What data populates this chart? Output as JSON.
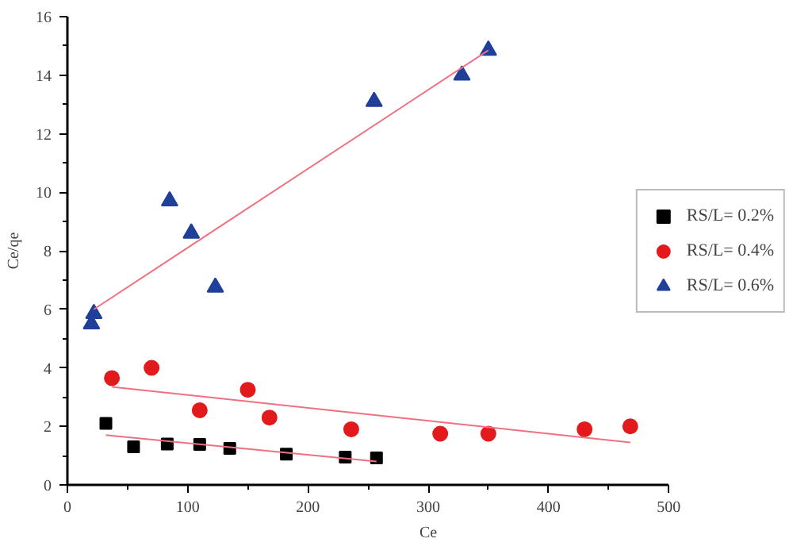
{
  "chart_data": {
    "type": "scatter",
    "xlabel": "Ce",
    "ylabel": "Ce/qe",
    "xlim": [
      0,
      500
    ],
    "xticks": [
      0,
      100,
      200,
      300,
      400,
      500
    ],
    "ylim": [
      0,
      16
    ],
    "yticks": [
      0,
      2,
      4,
      6,
      8,
      10,
      12,
      14,
      16
    ],
    "grid": false,
    "legend": "right",
    "series": [
      {
        "name": "RS/L= 0.2%",
        "color": "#000000",
        "marker": "square",
        "x": [
          32,
          55,
          83,
          110,
          135,
          182,
          231,
          257
        ],
        "values": [
          2.1,
          1.3,
          1.4,
          1.38,
          1.25,
          1.05,
          0.95,
          0.92
        ]
      },
      {
        "name": "RS/L= 0.4%",
        "color": "#e31a1c",
        "marker": "circle",
        "x": [
          37,
          70,
          110,
          150,
          168,
          236,
          310,
          350,
          430,
          468
        ],
        "values": [
          3.65,
          4.0,
          2.55,
          3.25,
          2.3,
          1.9,
          1.75,
          1.75,
          1.9,
          2.0
        ]
      },
      {
        "name": "RS/L= 0.6%",
        "color": "#1f3f9a",
        "marker": "triangle",
        "x": [
          20,
          22,
          85,
          103,
          123,
          255,
          328,
          350
        ],
        "values": [
          5.5,
          5.85,
          9.7,
          8.6,
          6.75,
          13.1,
          14.0,
          14.85
        ]
      },
      {
        "type": "line",
        "color": "#f07080",
        "x": [
          32,
          257
        ],
        "values": [
          1.7,
          0.8
        ]
      },
      {
        "type": "line",
        "color": "#f07080",
        "x": [
          37,
          468
        ],
        "values": [
          3.35,
          1.45
        ]
      },
      {
        "type": "line",
        "color": "#f07080",
        "x": [
          22,
          350
        ],
        "values": [
          6.0,
          14.85
        ]
      }
    ]
  }
}
